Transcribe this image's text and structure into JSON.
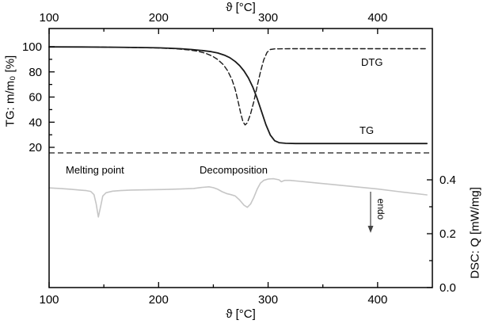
{
  "figure": {
    "background": "#ffffff",
    "frame_color": "#000000"
  },
  "chart_data": {
    "type": "line",
    "title": "",
    "x_axis": {
      "label": "ϑ [°C]",
      "range": [
        100,
        450
      ],
      "major_ticks": [
        100,
        200,
        300,
        400
      ],
      "minor_ticks": [
        150,
        250,
        350
      ],
      "mirrored_top": true
    },
    "y_axis_left": {
      "label": "TG: m/m₀ [%]",
      "displayed_range": [
        20,
        100
      ],
      "ticks": [
        100,
        80,
        60,
        40,
        20
      ],
      "minor_ticks": [
        90,
        70,
        50,
        30
      ]
    },
    "y_axis_right": {
      "label": "DSC: Q [mW/mg]",
      "range": [
        0.0,
        0.5
      ],
      "tick_values": [
        0.4,
        0.2,
        0.0
      ],
      "tick_labels": [
        "0.4",
        "0.2",
        "0.0"
      ],
      "minor_ticks": [
        0.3,
        0.1
      ]
    },
    "series": [
      {
        "name": "DSC",
        "axis": "right",
        "line_style": "solid",
        "color": "#c6c6c6",
        "width": 1.6,
        "points": [
          [
            100,
            0.37
          ],
          [
            110,
            0.368
          ],
          [
            120,
            0.365
          ],
          [
            128,
            0.362
          ],
          [
            134,
            0.36
          ],
          [
            138,
            0.357
          ],
          [
            141,
            0.345
          ],
          [
            143,
            0.31
          ],
          [
            145,
            0.262
          ],
          [
            147,
            0.3
          ],
          [
            149,
            0.34
          ],
          [
            152,
            0.352
          ],
          [
            158,
            0.358
          ],
          [
            165,
            0.36
          ],
          [
            175,
            0.362
          ],
          [
            190,
            0.363
          ],
          [
            205,
            0.364
          ],
          [
            220,
            0.366
          ],
          [
            232,
            0.368
          ],
          [
            240,
            0.372
          ],
          [
            246,
            0.374
          ],
          [
            250,
            0.371
          ],
          [
            254,
            0.365
          ],
          [
            258,
            0.356
          ],
          [
            262,
            0.349
          ],
          [
            266,
            0.345
          ],
          [
            270,
            0.34
          ],
          [
            274,
            0.325
          ],
          [
            278,
            0.306
          ],
          [
            281,
            0.298
          ],
          [
            284,
            0.31
          ],
          [
            287,
            0.335
          ],
          [
            290,
            0.365
          ],
          [
            293,
            0.388
          ],
          [
            296,
            0.398
          ],
          [
            300,
            0.403
          ],
          [
            305,
            0.404
          ],
          [
            310,
            0.4
          ],
          [
            312,
            0.393
          ],
          [
            315,
            0.398
          ],
          [
            320,
            0.398
          ],
          [
            330,
            0.394
          ],
          [
            345,
            0.388
          ],
          [
            360,
            0.382
          ],
          [
            380,
            0.374
          ],
          [
            400,
            0.366
          ],
          [
            420,
            0.356
          ],
          [
            445,
            0.344
          ]
        ]
      },
      {
        "name": "TG",
        "axis": "left",
        "line_style": "solid",
        "color": "#1a1a1a",
        "width": 1.8,
        "points": [
          [
            100,
            99.9
          ],
          [
            130,
            99.8
          ],
          [
            160,
            99.6
          ],
          [
            190,
            99.3
          ],
          [
            200,
            99.1
          ],
          [
            210,
            98.8
          ],
          [
            220,
            98.4
          ],
          [
            230,
            97.8
          ],
          [
            240,
            97.0
          ],
          [
            248,
            96.1
          ],
          [
            254,
            95.0
          ],
          [
            260,
            93.3
          ],
          [
            265,
            91.3
          ],
          [
            270,
            88.2
          ],
          [
            274,
            85.0
          ],
          [
            278,
            80.8
          ],
          [
            282,
            75.2
          ],
          [
            286,
            68.0
          ],
          [
            290,
            59.0
          ],
          [
            294,
            48.5
          ],
          [
            298,
            38.0
          ],
          [
            302,
            29.8
          ],
          [
            306,
            25.2
          ],
          [
            310,
            23.7
          ],
          [
            316,
            23.2
          ],
          [
            325,
            23.0
          ],
          [
            350,
            23.0
          ],
          [
            375,
            23.0
          ],
          [
            400,
            23.0
          ],
          [
            425,
            23.0
          ],
          [
            445,
            23.0
          ]
        ]
      },
      {
        "name": "DTG",
        "axis": "left",
        "line_style": "dashed",
        "color": "#1a1a1a",
        "width": 1.4,
        "points": [
          [
            100,
            99.9
          ],
          [
            140,
            99.8
          ],
          [
            180,
            99.4
          ],
          [
            200,
            99.0
          ],
          [
            215,
            98.4
          ],
          [
            228,
            97.5
          ],
          [
            236,
            96.4
          ],
          [
            243,
            94.8
          ],
          [
            249,
            92.6
          ],
          [
            254,
            89.8
          ],
          [
            259,
            85.8
          ],
          [
            263,
            81.0
          ],
          [
            267,
            74.0
          ],
          [
            270,
            66.0
          ],
          [
            273,
            55.0
          ],
          [
            275,
            47.0
          ],
          [
            277,
            40.5
          ],
          [
            279,
            37.8
          ],
          [
            281,
            39.5
          ],
          [
            284,
            46.5
          ],
          [
            287,
            56.5
          ],
          [
            290,
            68.5
          ],
          [
            293,
            80.0
          ],
          [
            296,
            89.5
          ],
          [
            299,
            95.5
          ],
          [
            302,
            97.8
          ],
          [
            306,
            98.3
          ],
          [
            320,
            98.4
          ],
          [
            360,
            98.4
          ],
          [
            400,
            98.4
          ],
          [
            445,
            98.4
          ]
        ]
      }
    ],
    "separator_line": {
      "style": "dashed",
      "color": "#1a1a1a",
      "y_right_value": 0.5
    },
    "annotations": {
      "melting_point": "Melting point",
      "decomposition": "Decomposition",
      "dtg": "DTG",
      "tg": "TG",
      "endo": "endo"
    },
    "endo_arrow": {
      "direction": "down"
    }
  }
}
